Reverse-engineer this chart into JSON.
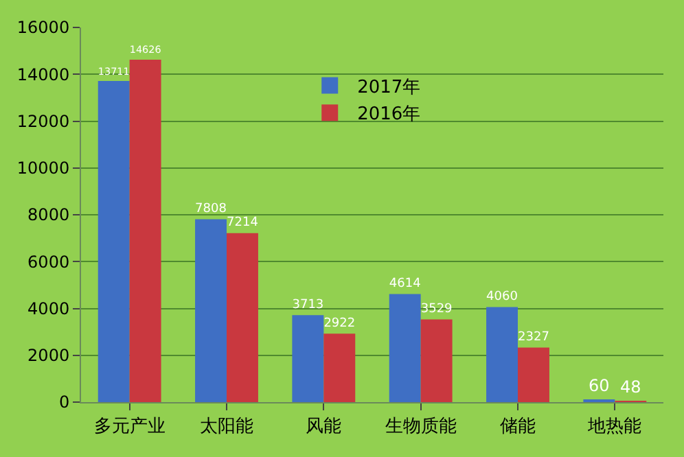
{
  "chart_data": {
    "type": "bar",
    "categories": [
      "多元产业",
      "太阳能",
      "风能",
      "生物质能",
      "储能",
      "地热能"
    ],
    "series": [
      {
        "name": "2017年",
        "color": "#3f6fc4",
        "values": [
          13711,
          7808,
          3713,
          4614,
          4060,
          60
        ]
      },
      {
        "name": "2016年",
        "color": "#c9383f",
        "values": [
          14626,
          7214,
          2922,
          3529,
          2327,
          48
        ]
      }
    ],
    "ylim": [
      0,
      16000
    ],
    "yticks": [
      0,
      2000,
      4000,
      6000,
      8000,
      10000,
      12000,
      14000,
      16000
    ],
    "grid": "y",
    "legend": "top",
    "data_labels": true
  }
}
